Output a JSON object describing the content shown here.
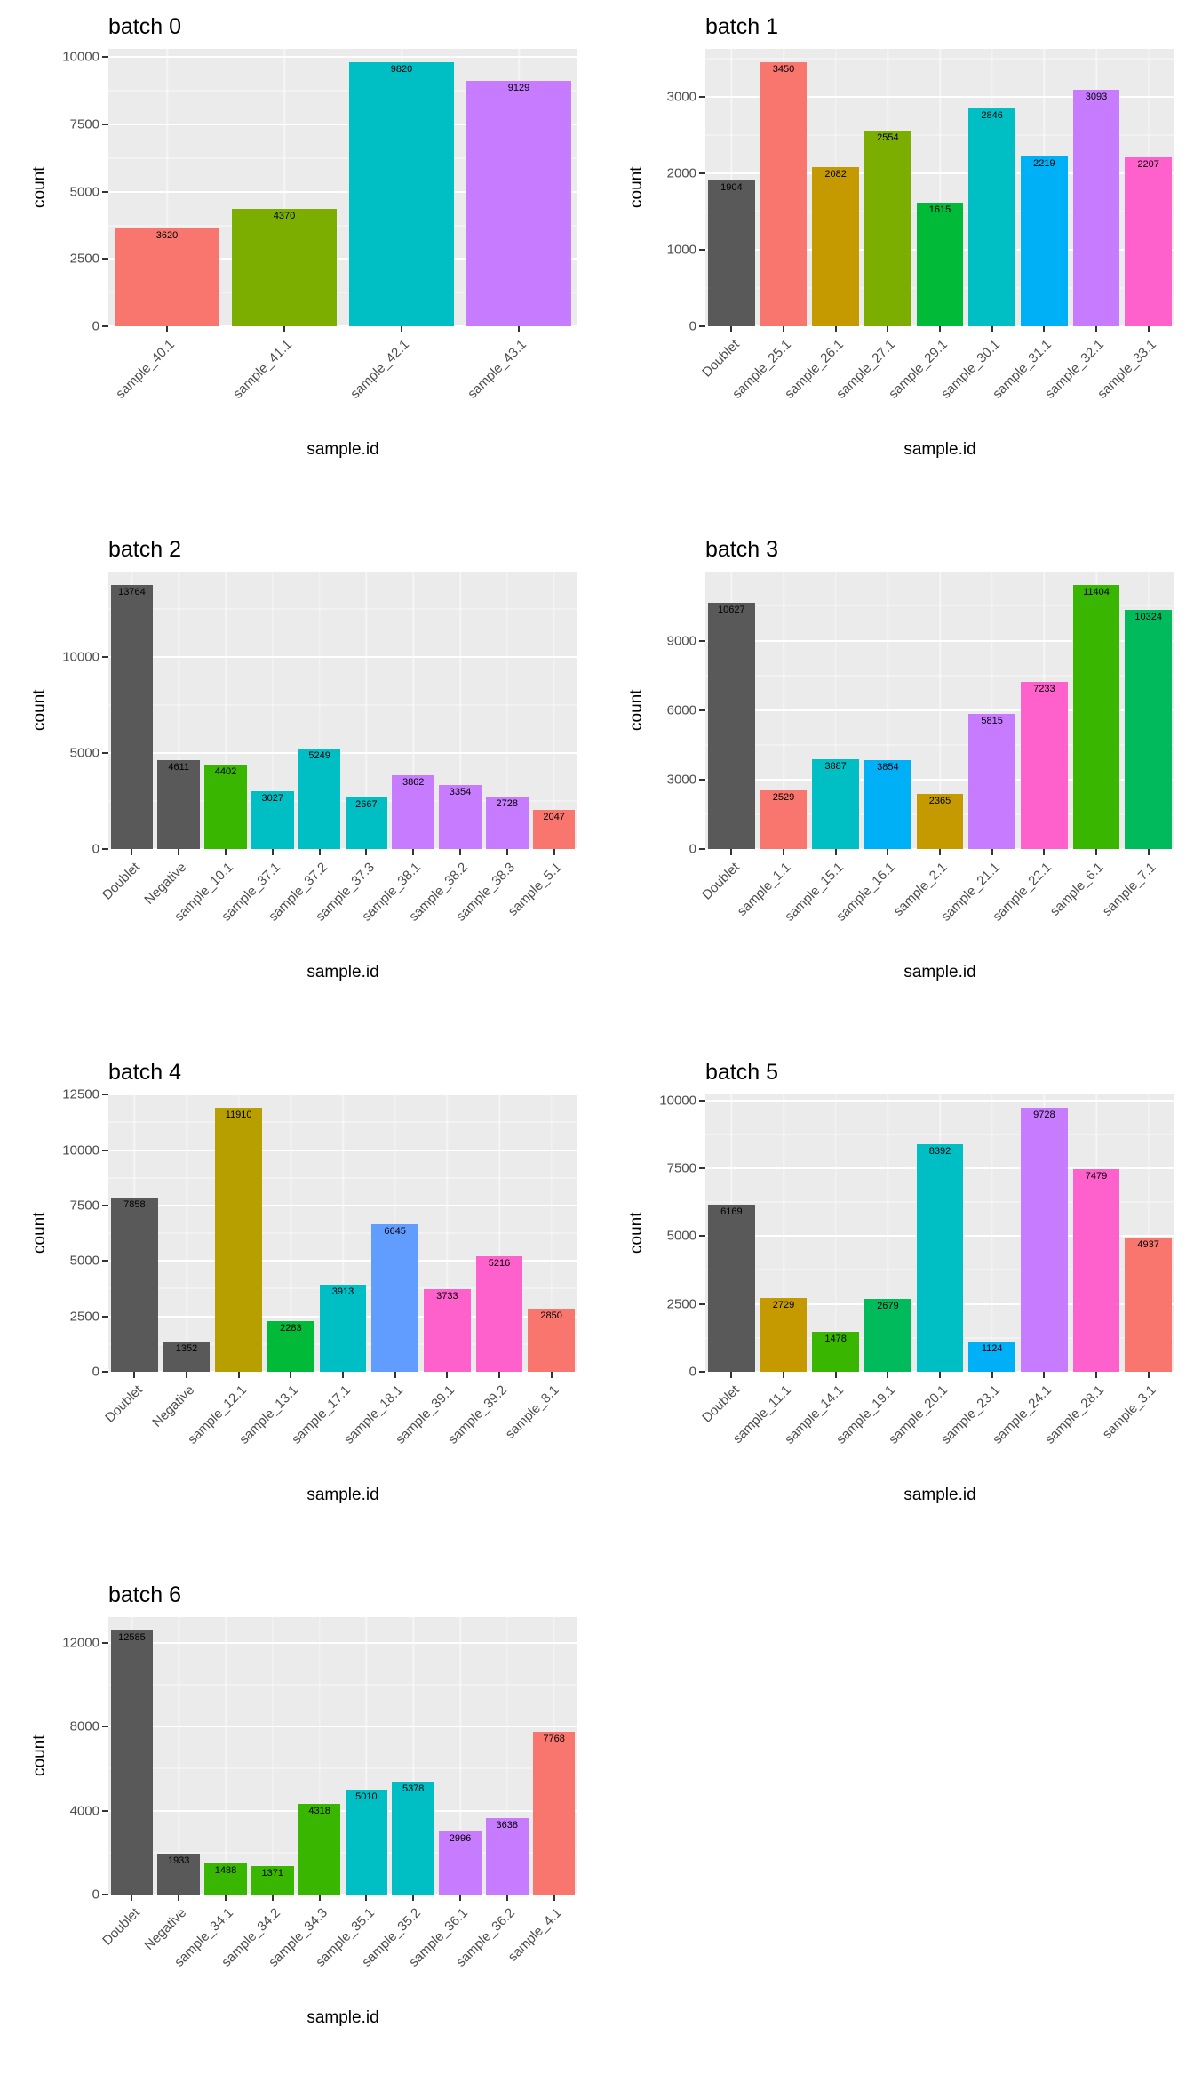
{
  "style": {
    "panel_background": "#EBEBEB",
    "grid_color": "#FFFFFF",
    "tick_text_color": "#4D4D4D",
    "axis_title_color": "#000000",
    "bar_label_color": "#000000",
    "doublet_negative_color": "#595959"
  },
  "chart_data": [
    {
      "type": "bar",
      "title": "batch 0",
      "xlabel": "sample.id",
      "ylabel": "count",
      "yticks": [
        0,
        2500,
        5000,
        7500,
        10000
      ],
      "ylim": [
        0,
        10311
      ],
      "grid": true,
      "bars": [
        {
          "label": "sample_40.1",
          "value": 3620,
          "color": "#F8766D"
        },
        {
          "label": "sample_41.1",
          "value": 4370,
          "color": "#7CAE00"
        },
        {
          "label": "sample_42.1",
          "value": 9820,
          "color": "#00BFC4"
        },
        {
          "label": "sample_43.1",
          "value": 9129,
          "color": "#C77CFF"
        }
      ]
    },
    {
      "type": "bar",
      "title": "batch 1",
      "xlabel": "sample.id",
      "ylabel": "count",
      "yticks": [
        0,
        1000,
        2000,
        3000
      ],
      "ylim": [
        0,
        3623
      ],
      "grid": true,
      "bars": [
        {
          "label": "Doublet",
          "value": 1904,
          "color": "#595959"
        },
        {
          "label": "sample_25.1",
          "value": 3450,
          "color": "#F8766D"
        },
        {
          "label": "sample_26.1",
          "value": 2082,
          "color": "#C49A00"
        },
        {
          "label": "sample_27.1",
          "value": 2554,
          "color": "#7CAE00"
        },
        {
          "label": "sample_29.1",
          "value": 1615,
          "color": "#00BA38"
        },
        {
          "label": "sample_30.1",
          "value": 2846,
          "color": "#00BFC4"
        },
        {
          "label": "sample_31.1",
          "value": 2219,
          "color": "#00B0F6"
        },
        {
          "label": "sample_32.1",
          "value": 3093,
          "color": "#C77CFF"
        },
        {
          "label": "sample_33.1",
          "value": 2207,
          "color": "#FF61CC"
        }
      ]
    },
    {
      "type": "bar",
      "title": "batch 2",
      "xlabel": "sample.id",
      "ylabel": "count",
      "yticks": [
        0,
        5000,
        10000
      ],
      "ylim": [
        0,
        14452
      ],
      "grid": true,
      "bars": [
        {
          "label": "Doublet",
          "value": 13764,
          "color": "#595959"
        },
        {
          "label": "Negative",
          "value": 4611,
          "color": "#595959"
        },
        {
          "label": "sample_10.1",
          "value": 4402,
          "color": "#39B600"
        },
        {
          "label": "sample_37.1",
          "value": 3027,
          "color": "#00BFC4"
        },
        {
          "label": "sample_37.2",
          "value": 5249,
          "color": "#00BFC4"
        },
        {
          "label": "sample_37.3",
          "value": 2667,
          "color": "#00BFC4"
        },
        {
          "label": "sample_38.1",
          "value": 3862,
          "color": "#C77CFF"
        },
        {
          "label": "sample_38.2",
          "value": 3354,
          "color": "#C77CFF"
        },
        {
          "label": "sample_38.3",
          "value": 2728,
          "color": "#C77CFF"
        },
        {
          "label": "sample_5.1",
          "value": 2047,
          "color": "#F8766D"
        }
      ]
    },
    {
      "type": "bar",
      "title": "batch 3",
      "xlabel": "sample.id",
      "ylabel": "count",
      "yticks": [
        0,
        3000,
        6000,
        9000
      ],
      "ylim": [
        0,
        11974
      ],
      "grid": true,
      "bars": [
        {
          "label": "Doublet",
          "value": 10627,
          "color": "#595959"
        },
        {
          "label": "sample_1.1",
          "value": 2529,
          "color": "#F8766D"
        },
        {
          "label": "sample_15.1",
          "value": 3887,
          "color": "#00BFC4"
        },
        {
          "label": "sample_16.1",
          "value": 3854,
          "color": "#00B0F6"
        },
        {
          "label": "sample_2.1",
          "value": 2365,
          "color": "#C49A00"
        },
        {
          "label": "sample_21.1",
          "value": 5815,
          "color": "#C77CFF"
        },
        {
          "label": "sample_22.1",
          "value": 7233,
          "color": "#FF61CC"
        },
        {
          "label": "sample_6.1",
          "value": 11404,
          "color": "#39B600"
        },
        {
          "label": "sample_7.1",
          "value": 10324,
          "color": "#00BA5C"
        }
      ]
    },
    {
      "type": "bar",
      "title": "batch 4",
      "xlabel": "sample.id",
      "ylabel": "count",
      "yticks": [
        0,
        2500,
        5000,
        7500,
        10000,
        12500
      ],
      "ylim": [
        0,
        12506
      ],
      "grid": true,
      "bars": [
        {
          "label": "Doublet",
          "value": 7858,
          "color": "#595959"
        },
        {
          "label": "Negative",
          "value": 1352,
          "color": "#595959"
        },
        {
          "label": "sample_12.1",
          "value": 11910,
          "color": "#B79F00"
        },
        {
          "label": "sample_13.1",
          "value": 2283,
          "color": "#00BA38"
        },
        {
          "label": "sample_17.1",
          "value": 3913,
          "color": "#00BFC4"
        },
        {
          "label": "sample_18.1",
          "value": 6645,
          "color": "#619CFF"
        },
        {
          "label": "sample_39.1",
          "value": 3733,
          "color": "#FF61CC"
        },
        {
          "label": "sample_39.2",
          "value": 5216,
          "color": "#FF61CC"
        },
        {
          "label": "sample_8.1",
          "value": 2850,
          "color": "#F8766D"
        }
      ]
    },
    {
      "type": "bar",
      "title": "batch 5",
      "xlabel": "sample.id",
      "ylabel": "count",
      "yticks": [
        0,
        2500,
        5000,
        7500,
        10000
      ],
      "ylim": [
        0,
        10214
      ],
      "grid": true,
      "bars": [
        {
          "label": "Doublet",
          "value": 6169,
          "color": "#595959"
        },
        {
          "label": "sample_11.1",
          "value": 2729,
          "color": "#C49A00"
        },
        {
          "label": "sample_14.1",
          "value": 1478,
          "color": "#39B600"
        },
        {
          "label": "sample_19.1",
          "value": 2679,
          "color": "#00BA5C"
        },
        {
          "label": "sample_20.1",
          "value": 8392,
          "color": "#00BFC4"
        },
        {
          "label": "sample_23.1",
          "value": 1124,
          "color": "#00B0F6"
        },
        {
          "label": "sample_24.1",
          "value": 9728,
          "color": "#C77CFF"
        },
        {
          "label": "sample_28.1",
          "value": 7479,
          "color": "#FF61CC"
        },
        {
          "label": "sample_3.1",
          "value": 4937,
          "color": "#F8766D"
        }
      ]
    },
    {
      "type": "bar",
      "title": "batch 6",
      "xlabel": "sample.id",
      "ylabel": "count",
      "yticks": [
        0,
        4000,
        8000,
        12000
      ],
      "ylim": [
        0,
        13214
      ],
      "grid": true,
      "bars": [
        {
          "label": "Doublet",
          "value": 12585,
          "color": "#595959"
        },
        {
          "label": "Negative",
          "value": 1933,
          "color": "#595959"
        },
        {
          "label": "sample_34.1",
          "value": 1488,
          "color": "#39B600"
        },
        {
          "label": "sample_34.2",
          "value": 1371,
          "color": "#39B600"
        },
        {
          "label": "sample_34.3",
          "value": 4318,
          "color": "#39B600"
        },
        {
          "label": "sample_35.1",
          "value": 5010,
          "color": "#00BFC4"
        },
        {
          "label": "sample_35.2",
          "value": 5378,
          "color": "#00BFC4"
        },
        {
          "label": "sample_36.1",
          "value": 2996,
          "color": "#C77CFF"
        },
        {
          "label": "sample_36.2",
          "value": 3638,
          "color": "#C77CFF"
        },
        {
          "label": "sample_4.1",
          "value": 7768,
          "color": "#F8766D"
        }
      ]
    }
  ]
}
